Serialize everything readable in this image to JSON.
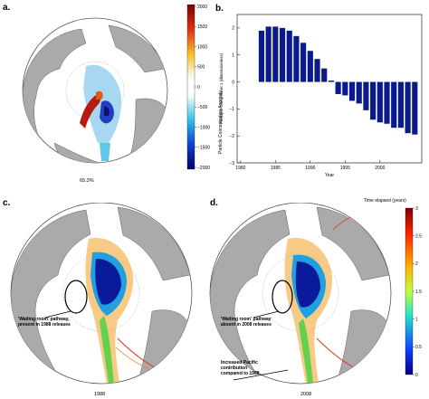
{
  "panels": {
    "a": {
      "label": "a.",
      "percent": "65.3%"
    },
    "b": {
      "label": "b."
    },
    "c": {
      "label": "c.",
      "year": "1988",
      "annotation": [
        "'Waiting room' pathway,",
        "present in 1988 releases"
      ]
    },
    "d": {
      "label": "d.",
      "year": "2008",
      "annotation": [
        "'Waiting room' pathway",
        "absent in 2008 releases"
      ],
      "annotation2": [
        "Increased Pacific",
        "contribution",
        "compared to 1988"
      ]
    }
  },
  "colorbar_a": {
    "title": "Particle Concentration Anomaly",
    "ticks": [
      "2000",
      "1500",
      "1000",
      "500",
      "0",
      "−500",
      "−1000",
      "−1500",
      "−2000"
    ]
  },
  "colorbar_cd": {
    "title": "Time elapsed (years)",
    "ticks": [
      "3",
      "2.5",
      "2",
      "1.5",
      "1",
      "0.5",
      "0"
    ]
  },
  "chart_data": {
    "type": "bar",
    "x": [
      1983,
      1984,
      1985,
      1986,
      1987,
      1988,
      1989,
      1990,
      1991,
      1992,
      1993,
      1994,
      1995,
      1996,
      1997,
      1998,
      1999,
      2000,
      2001,
      2002,
      2003,
      2004,
      2005
    ],
    "values": [
      1.9,
      2.05,
      2.05,
      2.0,
      1.9,
      1.7,
      1.45,
      1.15,
      0.85,
      0.5,
      0.05,
      -0.45,
      -0.5,
      -0.7,
      -0.8,
      -1.05,
      -1.4,
      -1.5,
      -1.55,
      -1.7,
      -1.7,
      -1.9,
      -1.95
    ],
    "xlabel": "Year",
    "ylabel": "Principal Component 1 (dimensionless)",
    "xticks": [
      1980,
      1985,
      1990,
      1995,
      2000
    ],
    "yticks": [
      2,
      1,
      0,
      -1,
      -2,
      -3
    ],
    "xlim": [
      1979.5,
      2006
    ],
    "ylim": [
      -3,
      2.5
    ],
    "color": "#0a1a8a",
    "grid": false
  }
}
